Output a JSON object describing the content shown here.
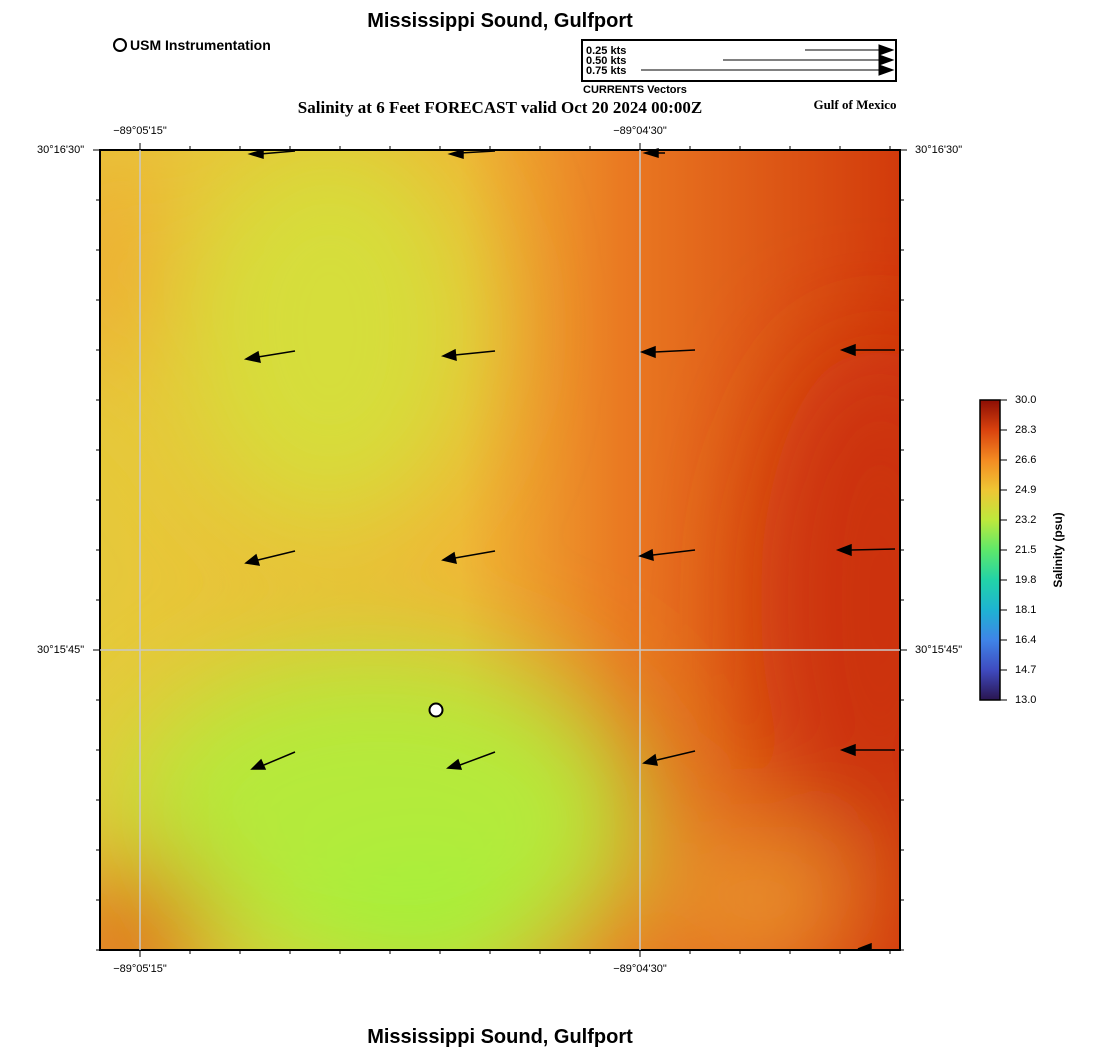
{
  "title_top": "Mississippi Sound, Gulfport",
  "title_bottom": "Mississippi Sound, Gulfport",
  "subtitle": "Salinity at 6 Feet FORECAST valid Oct 20 2024 00:00Z",
  "region_label": "Gulf of Mexico",
  "station_legend": {
    "label": "USM Instrumentation",
    "icon": "circle-marker-icon"
  },
  "vector_legend": {
    "caption": "CURRENTS Vectors",
    "entries": [
      {
        "label": "0.25 kts",
        "speed": 0.25
      },
      {
        "label": "0.50 kts",
        "speed": 0.5
      },
      {
        "label": "0.75 kts",
        "speed": 0.75
      }
    ]
  },
  "axes": {
    "lon_ticks": [
      "−89°05'15\"",
      "−89°04'30\""
    ],
    "lat_ticks": [
      "30°16'30\"",
      "30°15'45\""
    ]
  },
  "colorbar": {
    "label": "Salinity (psu)",
    "ticks": [
      "30.0",
      "28.3",
      "26.6",
      "24.9",
      "23.2",
      "21.5",
      "19.8",
      "18.1",
      "16.4",
      "14.7",
      "13.0"
    ],
    "min": 13.0,
    "max": 30.0
  },
  "colors": {
    "green": "#a6f03c",
    "yellow": "#d9dc3a",
    "orange": "#f5a431",
    "red": "#d8420f",
    "dark_red": "#cc3207",
    "grid": "#c8c8c8",
    "vector": "#000000"
  }
}
